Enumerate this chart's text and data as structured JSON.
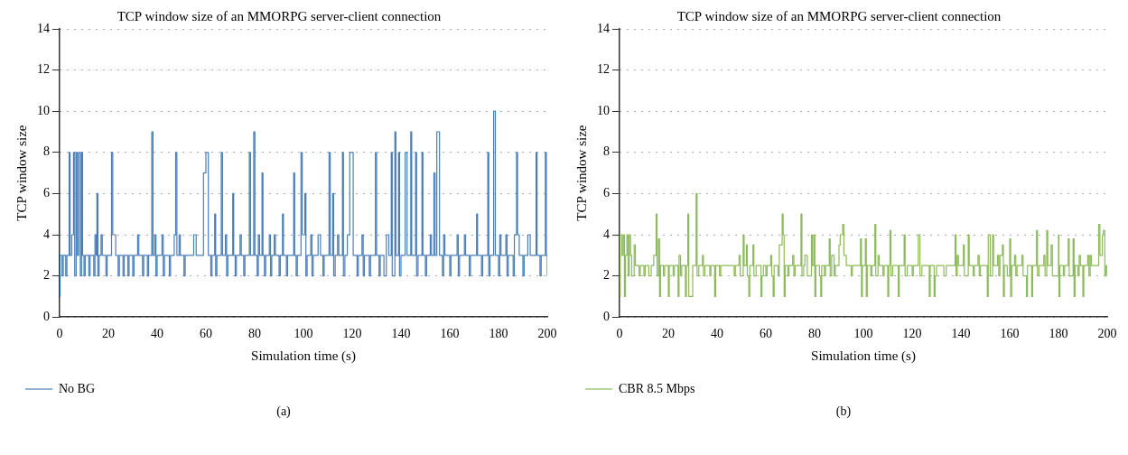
{
  "chart_data": [
    {
      "type": "step",
      "title": "TCP window size of an MMORPG server-client connection",
      "xlabel": "Simulation time (s)",
      "ylabel": "TCP window size",
      "xlim": [
        0,
        200
      ],
      "xticks": [
        0,
        20,
        40,
        60,
        80,
        100,
        120,
        140,
        160,
        180,
        200
      ],
      "ylim": [
        0,
        14
      ],
      "yticks": [
        0,
        2,
        4,
        6,
        8,
        10,
        12,
        14
      ],
      "grid": "y",
      "legend": "bottom left",
      "annotations": [
        "(a)"
      ],
      "series": [
        {
          "name": "No BG",
          "color": "#4a7ebb",
          "x": [
            0,
            0.2,
            1,
            1.5,
            2.5,
            3,
            3.9,
            4.3,
            5,
            5.7,
            6.2,
            6.8,
            7.3,
            7.8,
            8.5,
            9,
            9.4,
            10,
            10.5,
            12,
            12.5,
            14,
            14.5,
            15,
            15.3,
            15.7,
            16.2,
            17,
            17.5,
            19,
            19.5,
            21.3,
            21.8,
            23,
            24,
            24.5,
            26,
            26.5,
            28,
            28.5,
            30,
            30.5,
            32,
            32.5,
            34,
            34.5,
            36,
            36.5,
            37.8,
            38.3,
            39,
            39.5,
            40,
            42,
            42.5,
            43,
            45,
            45.5,
            47,
            47.6,
            48.1,
            49,
            49.5,
            51,
            51.5,
            55,
            56,
            59,
            60,
            61,
            62,
            62.5,
            63.6,
            64,
            64.5,
            66.3,
            66.8,
            68,
            68.5,
            69,
            71,
            71.4,
            72,
            72.5,
            74,
            74.5,
            75.5,
            76,
            77.8,
            78.3,
            79.6,
            80.1,
            81,
            81.5,
            82,
            83,
            83.4,
            84,
            84.5,
            86,
            86.5,
            87,
            88,
            88.5,
            90,
            90.5,
            91.4,
            91.8,
            93,
            93.5,
            96,
            96.4,
            97,
            97.5,
            99,
            99.5,
            100.6,
            101,
            101.5,
            103,
            103.5,
            104,
            106,
            107,
            108,
            108.5,
            110.5,
            111,
            112,
            112.4,
            113,
            114,
            114.5,
            116,
            116.4,
            117,
            118,
            119,
            120.4,
            122,
            122.5,
            124,
            124.5,
            125,
            127,
            127.5,
            129.5,
            130,
            131,
            131.5,
            133,
            134,
            135,
            136,
            136.4,
            137.5,
            137.9,
            139,
            139.4,
            140,
            141.7,
            142.5,
            144,
            144.4,
            146,
            146.4,
            147,
            148.6,
            149,
            150,
            150.5,
            152,
            152.5,
            153.5,
            154,
            154.7,
            155.8,
            157,
            157.5,
            158,
            160,
            160.5,
            163,
            163.5,
            164,
            166,
            166.5,
            168,
            168.5,
            171,
            171.4,
            173,
            173.5,
            175.6,
            176,
            176.5,
            178,
            178.7,
            180,
            180.5,
            181,
            183,
            183.5,
            184,
            186,
            186.5,
            187.4,
            187.8,
            188.5,
            190,
            190.5,
            192,
            193,
            195.4,
            195.8,
            197,
            197.5,
            199.2,
            199.6,
            200
          ],
          "values": [
            1,
            3,
            2,
            3,
            2,
            3,
            8,
            3,
            4,
            8,
            2,
            8,
            3,
            8,
            2,
            8,
            3,
            2,
            3,
            2,
            3,
            2,
            4,
            3,
            6,
            2,
            3,
            4,
            3,
            2,
            3,
            8,
            4,
            3,
            2,
            3,
            2,
            3,
            2,
            3,
            2,
            3,
            4,
            3,
            2,
            3,
            2,
            3,
            9,
            3,
            4,
            2,
            3,
            4,
            2,
            3,
            2,
            3,
            4,
            8,
            3,
            4,
            3,
            2,
            3,
            4,
            3,
            7,
            8,
            3,
            2,
            3,
            5,
            2,
            3,
            8,
            3,
            4,
            2,
            3,
            6,
            3,
            2,
            3,
            4,
            3,
            2,
            3,
            8,
            3,
            9,
            3,
            2,
            4,
            3,
            7,
            3,
            2,
            3,
            4,
            2,
            3,
            4,
            3,
            2,
            3,
            5,
            3,
            2,
            3,
            7,
            3,
            2,
            3,
            8,
            4,
            6,
            2,
            3,
            4,
            2,
            3,
            4,
            3,
            2,
            3,
            8,
            3,
            6,
            2,
            3,
            4,
            3,
            8,
            2,
            3,
            4,
            8,
            3,
            2,
            3,
            4,
            2,
            3,
            2,
            3,
            8,
            3,
            2,
            3,
            2,
            4,
            3,
            8,
            2,
            9,
            3,
            8,
            2,
            3,
            8,
            3,
            9,
            3,
            8,
            2,
            3,
            8,
            3,
            2,
            3,
            4,
            3,
            7,
            3,
            9,
            3,
            2,
            4,
            3,
            2,
            3,
            4,
            2,
            3,
            4,
            3,
            2,
            3,
            5,
            3,
            2,
            3,
            8,
            2,
            3,
            10,
            3,
            2,
            4,
            3,
            4,
            2,
            3,
            2,
            4,
            8,
            4,
            3,
            2,
            3,
            4,
            3,
            8,
            3,
            2,
            3,
            8,
            3,
            2
          ]
        }
      ]
    },
    {
      "type": "step",
      "title": "TCP window size of an MMORPG server-client connection",
      "xlabel": "Simulation time (s)",
      "ylabel": "TCP window size",
      "xlim": [
        0,
        200
      ],
      "xticks": [
        0,
        20,
        40,
        60,
        80,
        100,
        120,
        140,
        160,
        180,
        200
      ],
      "ylim": [
        0,
        14
      ],
      "yticks": [
        0,
        2,
        4,
        6,
        8,
        10,
        12,
        14
      ],
      "grid": "y",
      "legend": "bottom left",
      "annotations": [
        "(b)"
      ],
      "series": [
        {
          "name": "CBR 8.5 Mbps",
          "color": "#8cbb5c",
          "x": [
            0,
            0.3,
            1,
            1.5,
            2,
            2.4,
            3,
            3.5,
            4,
            4.5,
            5,
            6,
            6.5,
            8,
            8.5,
            10,
            10.5,
            12,
            13,
            14,
            15,
            15.4,
            16,
            16.4,
            16.8,
            18,
            18.5,
            20,
            20.4,
            22,
            22.5,
            24,
            24.4,
            25,
            25.5,
            27,
            27.4,
            28,
            28.4,
            30,
            31.4,
            31.8,
            32.5,
            34,
            34.4,
            35,
            37,
            37.5,
            39,
            39.4,
            41,
            41.5,
            47,
            47.5,
            49,
            49.5,
            50.7,
            51.1,
            52,
            52.4,
            53,
            53.4,
            54.7,
            55.1,
            56,
            58,
            58.4,
            59,
            60,
            60.5,
            62,
            62.4,
            63,
            63.4,
            65,
            65.5,
            66.7,
            67.1,
            67.5,
            67.9,
            69,
            69.5,
            71,
            71.5,
            72,
            74.4,
            74.8,
            75.5,
            76,
            77,
            78.7,
            79.1,
            79.7,
            80.1,
            80.5,
            82,
            82.5,
            82.9,
            84,
            84.5,
            86,
            86.4,
            87,
            88,
            88.5,
            90,
            90.5,
            91.5,
            92,
            93,
            95,
            95.5,
            98.8,
            99.2,
            99.6,
            100.8,
            101.2,
            101.6,
            103,
            103.5,
            104.7,
            105.1,
            106,
            106.5,
            108,
            108.5,
            110,
            110.4,
            110.9,
            111.3,
            112,
            114.3,
            114.7,
            116.7,
            117.1,
            118,
            120,
            120.5,
            122.5,
            123.2,
            124,
            127,
            127.4,
            129,
            129.4,
            130,
            133,
            134,
            137.6,
            138,
            138.5,
            139,
            141,
            141.4,
            143,
            143.4,
            145,
            145.5,
            147,
            147.5,
            148,
            150.8,
            151.2,
            152,
            153,
            153.4,
            155,
            155.5,
            156,
            157,
            157.4,
            157.8,
            159,
            160,
            160.4,
            160.8,
            162,
            162.5,
            163,
            165,
            165.5,
            166.9,
            167.3,
            169,
            169.4,
            171,
            171.4,
            172,
            174,
            174.5,
            175.2,
            175.6,
            177,
            177.5,
            180,
            180.2,
            180.6,
            182,
            182.5,
            184,
            184.4,
            186,
            186.4,
            186.8,
            188,
            188.5,
            189,
            190,
            190.4,
            192,
            192.5,
            193,
            193.5,
            196.5,
            197,
            198,
            198.4,
            199,
            199.5,
            200
          ],
          "values": [
            1,
            4,
            3,
            4,
            1,
            3,
            4,
            2,
            4,
            3,
            2,
            3.5,
            2.5,
            2,
            2.5,
            2,
            2.5,
            2,
            2.5,
            3,
            5,
            2,
            3.8,
            1,
            2.5,
            2,
            2.5,
            1,
            2.5,
            2,
            2.5,
            1,
            3,
            2,
            2.5,
            1,
            2.5,
            5,
            1,
            2.5,
            6,
            2,
            2.5,
            3,
            2,
            2.5,
            2,
            2.5,
            1,
            2.5,
            2,
            2.5,
            2,
            2.5,
            3,
            2,
            4,
            2.5,
            3.5,
            2,
            1,
            2.5,
            3.5,
            2,
            2.5,
            1,
            2,
            2.5,
            2,
            2.5,
            3,
            2,
            1,
            2.5,
            2,
            3.5,
            5,
            4,
            1,
            2.5,
            2,
            2.5,
            3,
            2,
            2.5,
            5,
            2,
            2.5,
            3,
            2,
            4,
            2.5,
            4,
            1,
            2.5,
            2,
            1,
            2.5,
            2,
            2.5,
            3.8,
            2,
            3,
            2,
            2.5,
            3.5,
            4,
            4.5,
            3,
            2.5,
            2,
            2.5,
            3.8,
            1,
            2.5,
            3.8,
            1,
            2.5,
            2,
            2.5,
            4.5,
            2,
            3,
            2.5,
            2,
            2.5,
            1,
            2.5,
            4.2,
            2,
            2.5,
            1,
            2.5,
            4,
            2,
            2.5,
            2,
            2.5,
            4,
            2,
            2.5,
            1,
            2.5,
            1,
            2,
            2.5,
            2,
            2.5,
            4,
            2,
            3,
            2.5,
            3.5,
            2,
            4,
            2.5,
            2,
            2.5,
            3,
            2,
            2.5,
            1,
            4,
            2,
            4,
            2.5,
            3,
            2,
            3,
            3.5,
            1,
            2.5,
            2,
            3.8,
            1,
            2.5,
            3,
            2,
            2.5,
            3,
            2,
            1,
            2.5,
            1,
            2.5,
            4.2,
            2,
            2.5,
            3,
            2,
            4.2,
            2.5,
            3.5,
            2,
            4,
            1,
            2.5,
            2,
            2.5,
            3.8,
            2,
            3.8,
            1,
            2.5,
            2,
            3,
            2.5,
            1,
            2.5,
            3,
            2,
            3,
            2.5,
            4.5,
            3,
            4,
            4.2,
            2,
            2.5,
            2
          ]
        }
      ]
    }
  ]
}
